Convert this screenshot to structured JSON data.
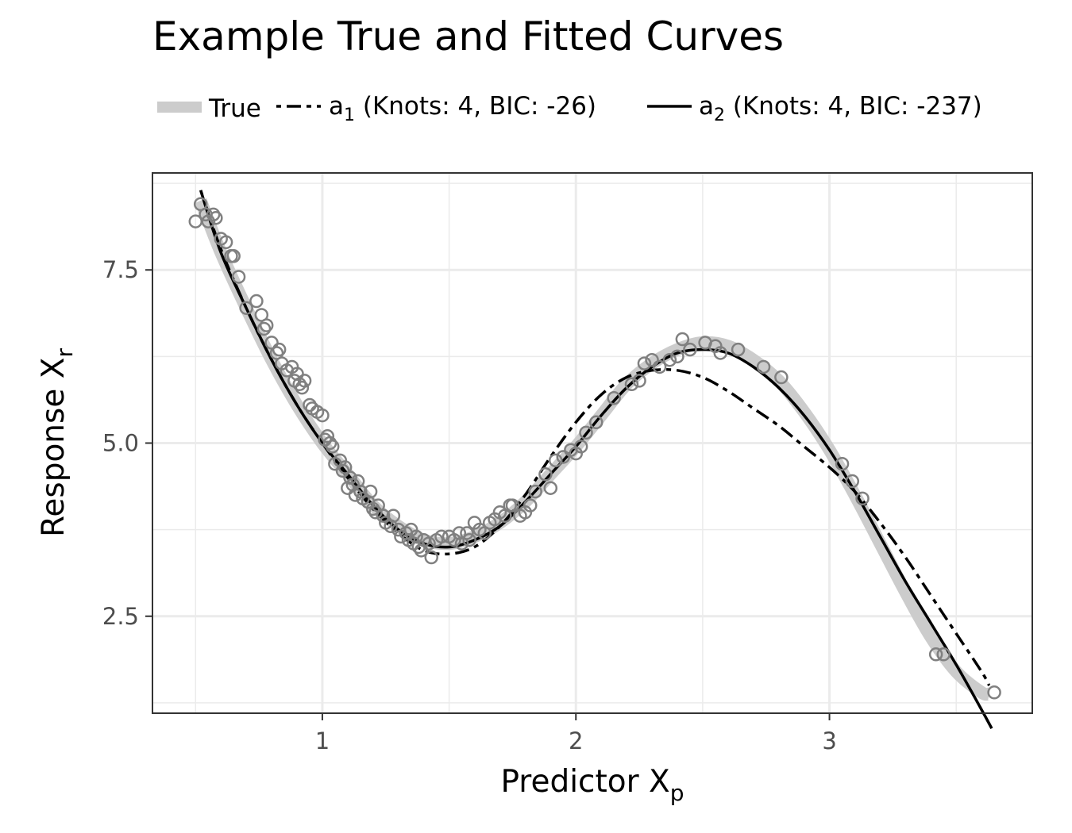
{
  "chart_data": {
    "type": "line",
    "title": "Example True and Fitted Curves",
    "xlabel": {
      "base": "Predictor X",
      "sub": "p"
    },
    "ylabel": {
      "base": "Response X",
      "sub": "r"
    },
    "xlim": [
      0.33,
      3.8
    ],
    "ylim": [
      1.1,
      8.9
    ],
    "x_ticks": [
      1,
      2,
      3
    ],
    "x_tick_labels": [
      "1",
      "2",
      "3"
    ],
    "y_ticks": [
      2.5,
      5.0,
      7.5
    ],
    "y_tick_labels": [
      "2.5",
      "5.0",
      "7.5"
    ],
    "x_minor_ticks": [
      0.5,
      1.5,
      2.5,
      3.5
    ],
    "y_minor_ticks": [
      1.25,
      3.75,
      6.25,
      8.75
    ],
    "grid": true,
    "legend_position": "top",
    "legend": [
      {
        "key": "true",
        "label": "True",
        "sub": "",
        "suffix": ""
      },
      {
        "key": "a1",
        "label": "a",
        "sub": "1",
        "suffix": " (Knots: 4, BIC: -26)"
      },
      {
        "key": "a2",
        "label": "a",
        "sub": "2",
        "suffix": " (Knots: 4, BIC: -237)"
      }
    ],
    "colors": {
      "true": "#cccccc",
      "fit": "#000000",
      "points": "#808080",
      "grid": "#ebebeb",
      "panel_border": "#333333",
      "tick_text": "#4d4d4d"
    },
    "series": [
      {
        "key": "true",
        "style": "thick-grey",
        "x": [
          0.52,
          0.6,
          0.7,
          0.8,
          0.9,
          1.0,
          1.1,
          1.2,
          1.3,
          1.4,
          1.5,
          1.6,
          1.7,
          1.8,
          1.9,
          2.0,
          2.1,
          2.2,
          2.3,
          2.4,
          2.5,
          2.6,
          2.7,
          2.8,
          2.9,
          3.0,
          3.1,
          3.2,
          3.3,
          3.4,
          3.5,
          3.6,
          3.63
        ],
        "y": [
          8.5,
          7.75,
          6.95,
          6.2,
          5.55,
          5.0,
          4.55,
          4.1,
          3.8,
          3.6,
          3.55,
          3.65,
          3.85,
          4.15,
          4.55,
          4.95,
          5.4,
          5.85,
          6.15,
          6.35,
          6.45,
          6.4,
          6.2,
          5.9,
          5.45,
          4.9,
          4.25,
          3.55,
          2.85,
          2.2,
          1.7,
          1.4,
          1.38
        ]
      },
      {
        "key": "a1",
        "style": "dashdot",
        "x": [
          0.52,
          0.6,
          0.7,
          0.8,
          0.9,
          1.0,
          1.1,
          1.2,
          1.3,
          1.4,
          1.5,
          1.6,
          1.7,
          1.8,
          1.9,
          2.0,
          2.1,
          2.2,
          2.3,
          2.4,
          2.5,
          2.6,
          2.7,
          2.8,
          2.9,
          3.0,
          3.1,
          3.2,
          3.3,
          3.4,
          3.5,
          3.6,
          3.63
        ],
        "y": [
          8.65,
          7.8,
          6.95,
          6.2,
          5.55,
          5.0,
          4.5,
          4.05,
          3.7,
          3.45,
          3.4,
          3.5,
          3.8,
          4.25,
          4.8,
          5.3,
          5.7,
          5.95,
          6.05,
          6.05,
          5.95,
          5.75,
          5.5,
          5.25,
          4.95,
          4.65,
          4.3,
          3.85,
          3.35,
          2.8,
          2.25,
          1.7,
          1.5
        ]
      },
      {
        "key": "a2",
        "style": "solid",
        "x": [
          0.52,
          0.6,
          0.7,
          0.8,
          0.9,
          1.0,
          1.1,
          1.2,
          1.3,
          1.4,
          1.5,
          1.6,
          1.7,
          1.8,
          1.9,
          2.0,
          2.1,
          2.2,
          2.3,
          2.4,
          2.5,
          2.6,
          2.7,
          2.8,
          2.9,
          3.0,
          3.1,
          3.2,
          3.3,
          3.4,
          3.5,
          3.6,
          3.64
        ],
        "y": [
          8.65,
          7.75,
          6.95,
          6.2,
          5.55,
          5.0,
          4.55,
          4.1,
          3.75,
          3.55,
          3.5,
          3.6,
          3.8,
          4.15,
          4.55,
          4.95,
          5.4,
          5.8,
          6.1,
          6.3,
          6.35,
          6.3,
          6.1,
          5.8,
          5.4,
          4.9,
          4.3,
          3.65,
          3.0,
          2.4,
          1.8,
          1.15,
          0.88
        ]
      }
    ],
    "points": {
      "x": [
        0.5,
        0.52,
        0.54,
        0.55,
        0.57,
        0.58,
        0.6,
        0.62,
        0.64,
        0.65,
        0.67,
        0.7,
        0.74,
        0.76,
        0.77,
        0.78,
        0.8,
        0.82,
        0.83,
        0.84,
        0.86,
        0.88,
        0.89,
        0.9,
        0.91,
        0.92,
        0.93,
        0.95,
        0.96,
        0.98,
        1.0,
        1.01,
        1.02,
        1.03,
        1.04,
        1.05,
        1.07,
        1.08,
        1.09,
        1.1,
        1.11,
        1.12,
        1.13,
        1.14,
        1.15,
        1.16,
        1.18,
        1.19,
        1.2,
        1.21,
        1.22,
        1.24,
        1.25,
        1.27,
        1.28,
        1.3,
        1.31,
        1.33,
        1.34,
        1.35,
        1.36,
        1.37,
        1.38,
        1.39,
        1.4,
        1.42,
        1.43,
        1.45,
        1.47,
        1.5,
        1.52,
        1.54,
        1.55,
        1.57,
        1.58,
        1.6,
        1.62,
        1.64,
        1.66,
        1.68,
        1.7,
        1.72,
        1.74,
        1.75,
        1.78,
        1.8,
        1.82,
        1.84,
        1.88,
        1.9,
        1.92,
        1.95,
        1.98,
        2.0,
        2.02,
        2.04,
        2.08,
        2.15,
        2.22,
        2.25,
        2.27,
        2.3,
        2.33,
        2.37,
        2.4,
        2.42,
        2.45,
        2.51,
        2.55,
        2.57,
        2.64,
        2.74,
        2.81,
        3.05,
        3.09,
        3.13,
        3.42,
        3.45,
        3.65
      ],
      "y": [
        8.2,
        8.45,
        8.3,
        8.2,
        8.3,
        8.25,
        7.95,
        7.9,
        7.7,
        7.7,
        7.4,
        6.95,
        7.05,
        6.85,
        6.65,
        6.7,
        6.45,
        6.3,
        6.35,
        6.15,
        6.05,
        6.1,
        5.9,
        6.0,
        5.85,
        5.8,
        5.9,
        5.55,
        5.5,
        5.45,
        5.4,
        5.05,
        5.1,
        5.0,
        4.95,
        4.7,
        4.75,
        4.6,
        4.65,
        4.35,
        4.5,
        4.4,
        4.25,
        4.45,
        4.3,
        4.2,
        4.15,
        4.3,
        4.05,
        4.0,
        4.1,
        3.95,
        3.85,
        3.8,
        3.95,
        3.75,
        3.65,
        3.7,
        3.6,
        3.75,
        3.55,
        3.65,
        3.5,
        3.45,
        3.6,
        3.55,
        3.35,
        3.6,
        3.65,
        3.65,
        3.6,
        3.7,
        3.55,
        3.7,
        3.6,
        3.85,
        3.75,
        3.7,
        3.85,
        3.9,
        4.0,
        3.95,
        4.1,
        4.1,
        3.95,
        4.0,
        4.1,
        4.3,
        4.55,
        4.35,
        4.75,
        4.8,
        4.9,
        4.85,
        4.95,
        5.15,
        5.3,
        5.65,
        5.85,
        5.9,
        6.15,
        6.2,
        6.1,
        6.2,
        6.25,
        6.5,
        6.35,
        6.45,
        6.4,
        6.3,
        6.35,
        6.1,
        5.95,
        4.7,
        4.45,
        4.2,
        1.95,
        1.95,
        1.4
      ]
    }
  }
}
